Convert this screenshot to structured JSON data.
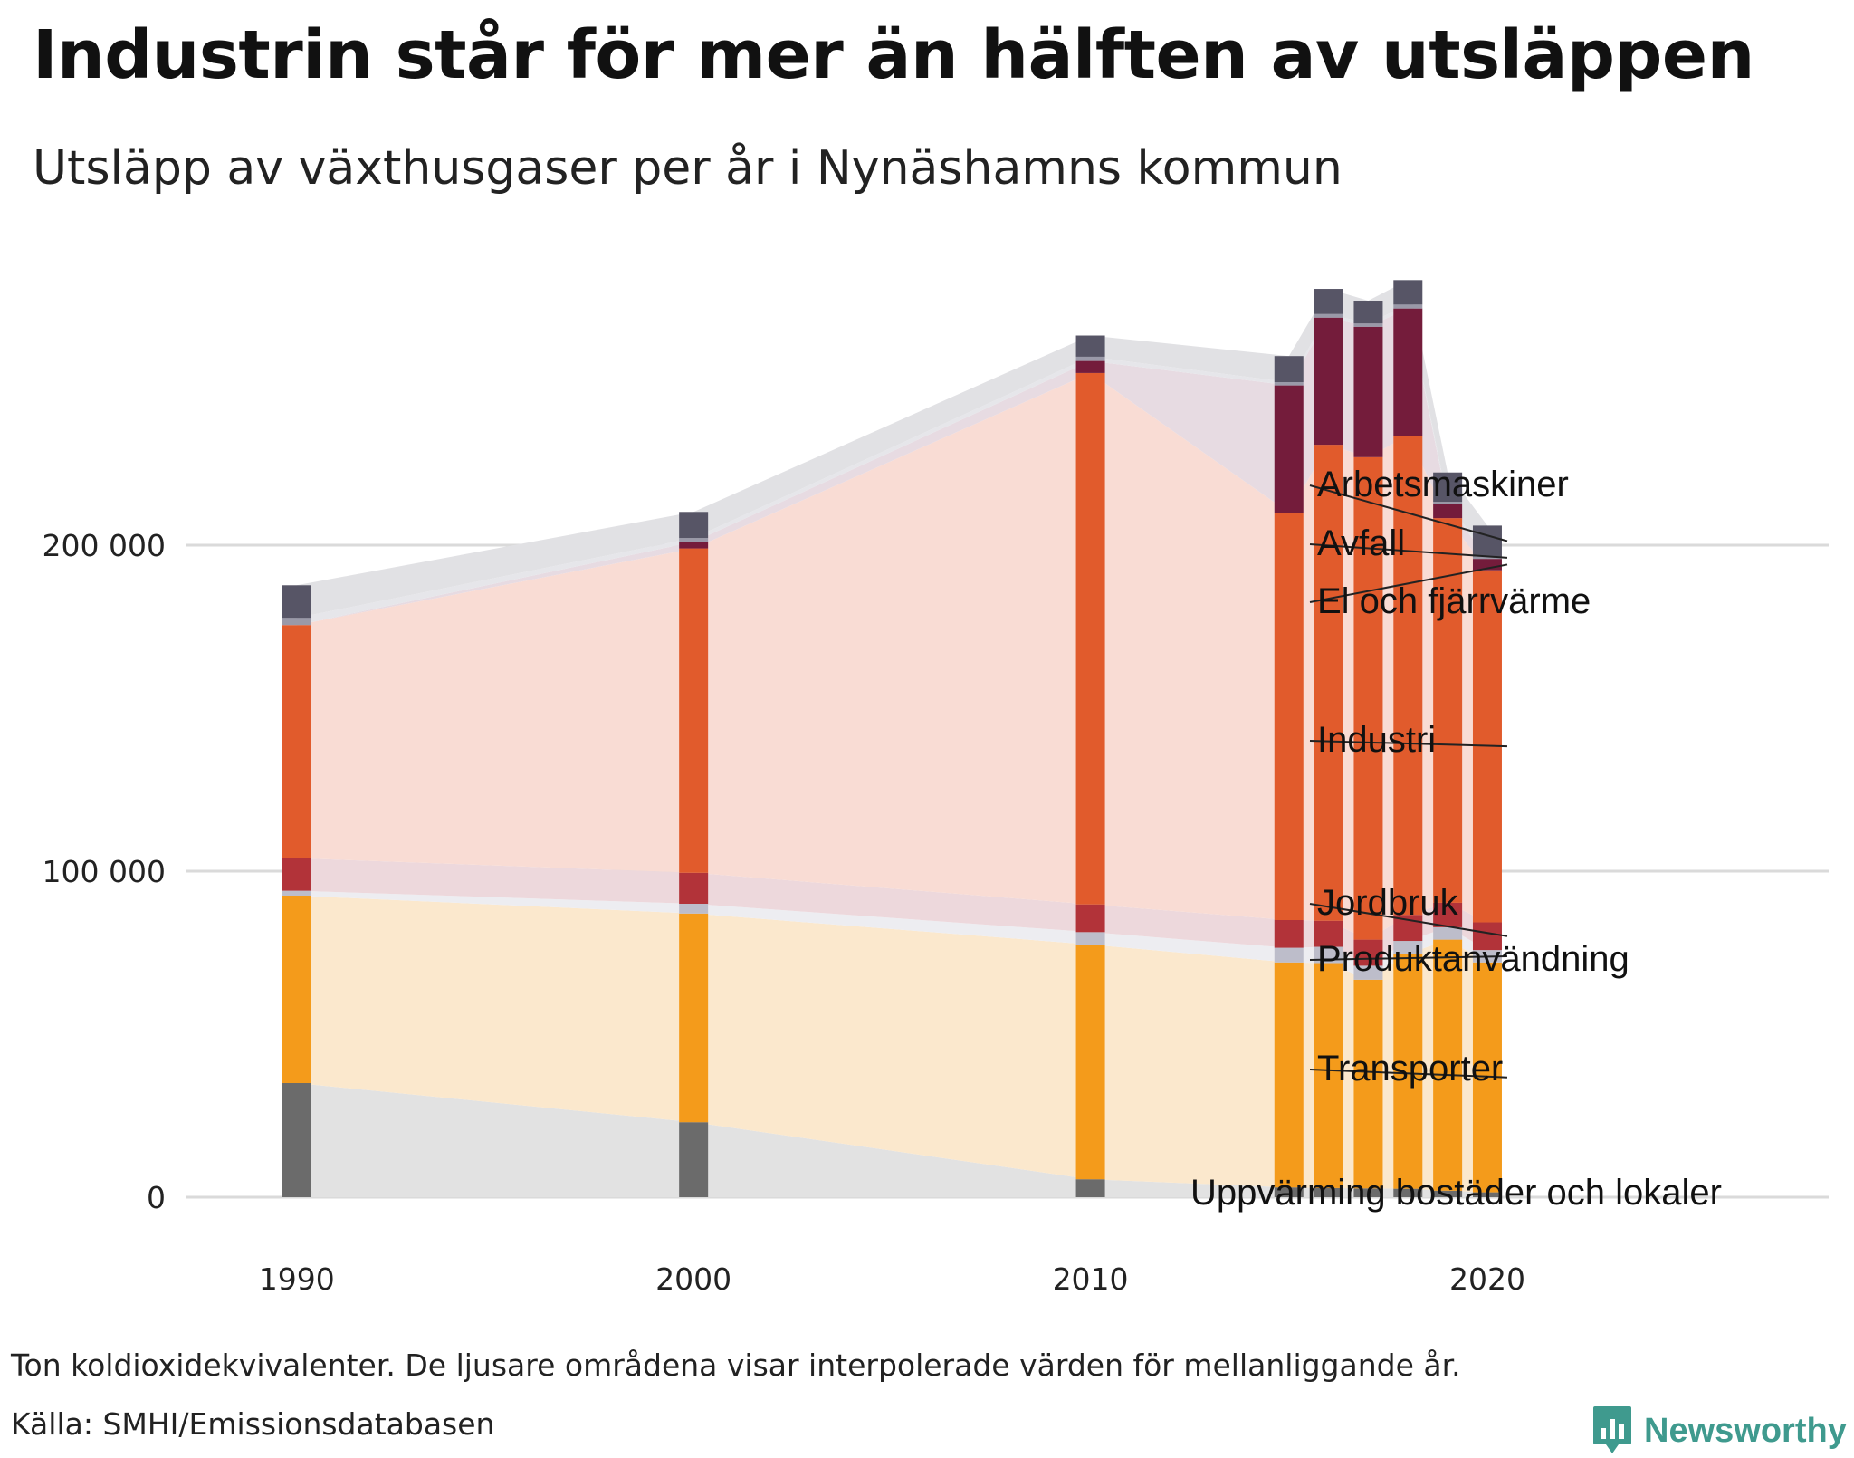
{
  "title": "Industrin står för mer än hälften av utsläppen",
  "subtitle": "Utsläpp av växthusgaser per år i Nynäshamns kommun",
  "note": "Ton koldioxidekvivalenter. De ljusare områdena visar interpolerade värden för mellanliggande år.",
  "source": "Källa: SMHI/Emissionsdatabasen",
  "brand": {
    "name": "Newsworthy",
    "icon": "newsworthy-chart-bubble-icon",
    "color": "#3f9a8e"
  },
  "chart_data": {
    "type": "bar",
    "stacked": true,
    "title": "Utsläpp av växthusgaser per år i Nynäshamns kommun",
    "xlabel": "",
    "ylabel": "Ton koldioxidekvivalenter",
    "ylim": [
      0,
      280000
    ],
    "yticks": [
      0,
      100000,
      200000
    ],
    "ytick_labels": [
      "0",
      "100 000",
      "200 000"
    ],
    "xticks": [
      1990,
      2000,
      2010,
      2020
    ],
    "xlim": [
      1987.2,
      2028.6
    ],
    "grid": true,
    "years": [
      1990,
      2000,
      2010,
      2015,
      2016,
      2017,
      2018,
      2019,
      2020
    ],
    "series": [
      {
        "name": "Uppvärming bostäder och lokaler",
        "color": "#6b6b6b",
        "light": "#e2e2e2",
        "values": [
          35000,
          23000,
          5500,
          3000,
          2800,
          2700,
          2600,
          2000,
          1500
        ]
      },
      {
        "name": "Transporter",
        "color": "#f49b1b",
        "light": "#fbe8cd",
        "values": [
          57500,
          64000,
          72000,
          69000,
          69000,
          64000,
          72000,
          77000,
          70500
        ]
      },
      {
        "name": "Produktanvändning",
        "color": "#bdbdca",
        "light": "#ededf1",
        "values": [
          1500,
          3000,
          3800,
          4500,
          5000,
          4300,
          4000,
          3800,
          3800
        ]
      },
      {
        "name": "Jordbruk",
        "color": "#b23339",
        "light": "#edd8dc",
        "values": [
          10000,
          9500,
          8500,
          8500,
          8000,
          8000,
          8000,
          7500,
          8500
        ]
      },
      {
        "name": "Industri",
        "color": "#e15b2c",
        "light": "#f9dcd4",
        "values": [
          71500,
          99500,
          163000,
          125000,
          146000,
          148000,
          147000,
          118000,
          108000
        ]
      },
      {
        "name": "El och fjärrvärme",
        "color": "#741c3b",
        "light": "#e7dbe2",
        "values": [
          0,
          2000,
          3700,
          39000,
          39000,
          40000,
          39000,
          4200,
          3500
        ]
      },
      {
        "name": "Avfall",
        "color": "#9a99a8",
        "light": "#e6e6ea",
        "values": [
          2200,
          1200,
          1300,
          1000,
          1100,
          1000,
          1200,
          800,
          700
        ]
      },
      {
        "name": "Arbetsmaskiner",
        "color": "#575566",
        "light": "#e1e1e4",
        "values": [
          10000,
          8000,
          6500,
          8000,
          7700,
          7000,
          7500,
          9000,
          9500
        ]
      }
    ],
    "legend_position": "right",
    "legend_labels": [
      "Arbetsmaskiner",
      "Avfall",
      "El och fjärrvärme",
      "Industri",
      "Jordbruk",
      "Produktanvändning",
      "Transporter",
      "Uppvärming bostäder och lokaler"
    ]
  }
}
